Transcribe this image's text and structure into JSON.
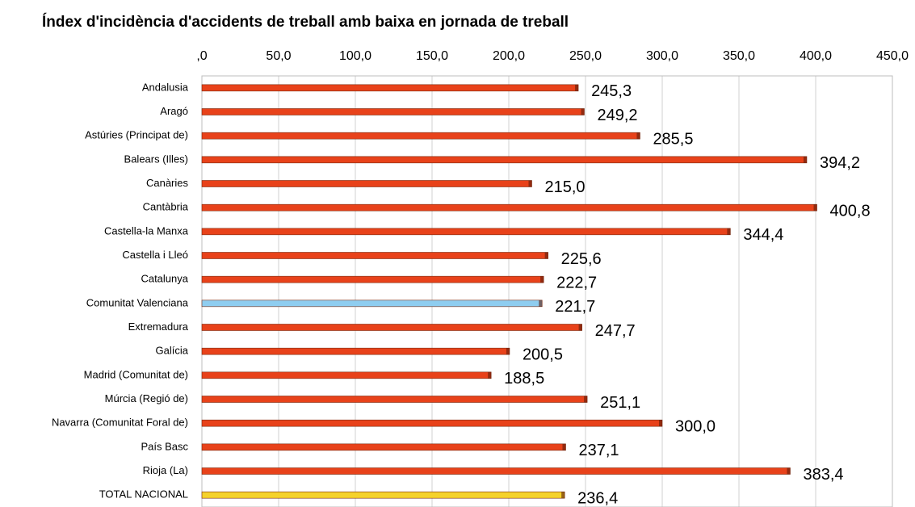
{
  "chart_data": {
    "type": "hbar",
    "title": "Índex d'incidència d'accidents de treball amb baixa en jornada de treball",
    "categories": [
      "Andalusia",
      "Aragó",
      "Astúries (Principat de)",
      "Balears (Illes)",
      "Canàries",
      "Cantàbria",
      "Castella-la Manxa",
      "Castella i Lleó",
      "Catalunya",
      "Comunitat Valenciana",
      "Extremadura",
      "Galícia",
      "Madrid (Comunitat de)",
      "Múrcia (Regió de)",
      "Navarra (Comunitat Foral de)",
      "País Basc",
      "Rioja (La)",
      "TOTAL NACIONAL"
    ],
    "values": [
      245.3,
      249.2,
      285.5,
      394.2,
      215.0,
      400.8,
      344.4,
      225.6,
      222.7,
      221.7,
      247.7,
      200.5,
      188.5,
      251.1,
      300.0,
      237.1,
      383.4,
      236.4
    ],
    "value_labels": [
      "245,3",
      "249,2",
      "285,5",
      "394,2",
      "215,0",
      "400,8",
      "344,4",
      "225,6",
      "222,7",
      "221,7",
      "247,7",
      "200,5",
      "188,5",
      "251,1",
      "300,0",
      "237,1",
      "383,4",
      "236,4"
    ],
    "colors": [
      "#e8421a",
      "#e8421a",
      "#e8421a",
      "#e8421a",
      "#e8421a",
      "#e8421a",
      "#e8421a",
      "#e8421a",
      "#e8421a",
      "#8ecdf0",
      "#e8421a",
      "#e8421a",
      "#e8421a",
      "#e8421a",
      "#e8421a",
      "#e8421a",
      "#e8421a",
      "#f5d22a"
    ],
    "xlim": [
      0,
      450
    ],
    "xticks": [
      {
        "value": 0,
        "label": ",0"
      },
      {
        "value": 50,
        "label": "50,0"
      },
      {
        "value": 100,
        "label": "100,0"
      },
      {
        "value": 150,
        "label": "150,0"
      },
      {
        "value": 200,
        "label": "200,0"
      },
      {
        "value": 250,
        "label": "250,0"
      },
      {
        "value": 300,
        "label": "300,0"
      },
      {
        "value": 350,
        "label": "350,0"
      },
      {
        "value": 400,
        "label": "400,0"
      },
      {
        "value": 450,
        "label": "450,0"
      }
    ],
    "grid": true
  }
}
